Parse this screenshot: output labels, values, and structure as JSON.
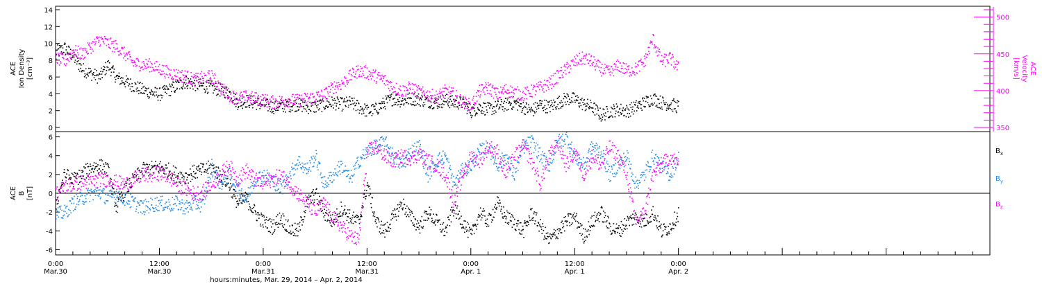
{
  "colors": {
    "black": "#000000",
    "magenta": "#ff00ff",
    "blue": "#1e88e5",
    "zero_line": "#000000"
  },
  "chart_data": [
    {
      "type": "scatter",
      "panel": "top",
      "ylabel_left": [
        "ACE",
        "Ion Density",
        "[cm⁻³]"
      ],
      "ylabel_right": [
        "ACE",
        "Velocity",
        "[km/s]"
      ],
      "ylim_left": [
        0,
        14
      ],
      "ylim_right": [
        350,
        510
      ],
      "yticks_left": [
        "0",
        "2",
        "4",
        "6",
        "8",
        "10",
        "12",
        "14"
      ],
      "yticks_right": [
        "350",
        "400",
        "450",
        "500"
      ],
      "series": [
        {
          "name": "Ion Density",
          "axis": "left",
          "color": "#000000",
          "x_hours": [
            0,
            1,
            2,
            3,
            4,
            5,
            6,
            7,
            8,
            9,
            10,
            11,
            12,
            13,
            14,
            15,
            16,
            17,
            18,
            19,
            20,
            21,
            22,
            23,
            24,
            25,
            26,
            27,
            28,
            29,
            30,
            31,
            32,
            33,
            34,
            35,
            36,
            37,
            38,
            39,
            40,
            41,
            42,
            43,
            44,
            45,
            46,
            47,
            48,
            49,
            50,
            51,
            52,
            53,
            54,
            55,
            56,
            57,
            58,
            59,
            60,
            61,
            62,
            63,
            64,
            65,
            66,
            67,
            68,
            69,
            70,
            71,
            72
          ],
          "values": [
            9.0,
            9.5,
            8.5,
            7.0,
            6.5,
            6.0,
            7.5,
            6.0,
            5.5,
            5.0,
            4.5,
            4.2,
            4.0,
            4.5,
            5.0,
            5.5,
            5.2,
            5.0,
            4.8,
            4.5,
            4.2,
            3.0,
            3.2,
            3.0,
            2.8,
            2.5,
            2.6,
            2.7,
            2.8,
            2.5,
            2.5,
            2.8,
            3.0,
            2.8,
            3.0,
            2.5,
            2.0,
            2.2,
            3.0,
            3.5,
            3.2,
            3.5,
            3.4,
            3.2,
            3.0,
            3.3,
            3.0,
            3.0,
            2.0,
            2.5,
            2.2,
            2.5,
            2.8,
            3.0,
            2.5,
            2.0,
            2.8,
            2.5,
            3.0,
            3.5,
            3.4,
            2.8,
            2.5,
            1.5,
            2.0,
            2.2,
            2.0,
            2.5,
            3.0,
            3.5,
            3.0,
            2.8,
            2.5
          ]
        },
        {
          "name": "Velocity",
          "axis": "right",
          "color": "#ff00ff",
          "x_hours": [
            0,
            1,
            2,
            3,
            4,
            5,
            6,
            7,
            8,
            9,
            10,
            11,
            12,
            13,
            14,
            15,
            16,
            17,
            18,
            19,
            20,
            21,
            22,
            23,
            24,
            25,
            26,
            27,
            28,
            29,
            30,
            31,
            32,
            33,
            34,
            35,
            36,
            37,
            38,
            39,
            40,
            41,
            42,
            43,
            44,
            45,
            46,
            47,
            48,
            49,
            50,
            51,
            52,
            53,
            54,
            55,
            56,
            57,
            58,
            59,
            60,
            61,
            62,
            63,
            64,
            65,
            66,
            67,
            68,
            69,
            70,
            71,
            72
          ],
          "values": [
            445,
            440,
            455,
            450,
            460,
            470,
            465,
            460,
            450,
            438,
            436,
            435,
            430,
            425,
            422,
            420,
            415,
            418,
            420,
            405,
            395,
            390,
            392,
            390,
            388,
            385,
            386,
            388,
            387,
            390,
            392,
            395,
            405,
            410,
            420,
            428,
            425,
            420,
            415,
            405,
            400,
            405,
            398,
            395,
            392,
            400,
            395,
            385,
            380,
            400,
            405,
            395,
            402,
            398,
            395,
            400,
            405,
            410,
            420,
            430,
            440,
            445,
            440,
            430,
            425,
            435,
            428,
            430,
            440,
            470,
            440,
            445,
            430
          ]
        }
      ]
    },
    {
      "type": "scatter",
      "panel": "bottom",
      "ylabel_left": [
        "ACE",
        "B",
        "[nT]"
      ],
      "ylim": [
        -7,
        7
      ],
      "yticks": [
        "-6",
        "-4",
        "-2",
        "0",
        "2",
        "4",
        "6"
      ],
      "legend_position": "right",
      "series": [
        {
          "name": "Bx",
          "legend_main": "B",
          "legend_sub": "x",
          "color": "#000000",
          "x_hours": [
            0,
            1,
            2,
            3,
            4,
            5,
            6,
            7,
            8,
            9,
            10,
            11,
            12,
            13,
            14,
            15,
            16,
            17,
            18,
            19,
            20,
            21,
            22,
            23,
            24,
            25,
            26,
            27,
            28,
            29,
            30,
            31,
            32,
            33,
            34,
            35,
            36,
            37,
            38,
            39,
            40,
            41,
            42,
            43,
            44,
            45,
            46,
            47,
            48,
            49,
            50,
            51,
            52,
            53,
            54,
            55,
            56,
            57,
            58,
            59,
            60,
            61,
            62,
            63,
            64,
            65,
            66,
            67,
            68,
            69,
            70,
            71,
            72
          ],
          "values": [
            -1.0,
            2.0,
            1.5,
            2.0,
            2.8,
            3.0,
            2.5,
            -1.5,
            0.5,
            1.5,
            2.5,
            2.7,
            2.8,
            2.5,
            2.0,
            1.8,
            2.3,
            2.5,
            2.8,
            2.0,
            1.0,
            -1.0,
            -0.5,
            -2.0,
            -3.0,
            -3.5,
            -2.5,
            -3.8,
            -4.0,
            -1.0,
            0.0,
            -2.0,
            -3.0,
            -1.5,
            -2.5,
            -3.0,
            1.0,
            -3.0,
            -4.0,
            -2.5,
            -1.0,
            -2.5,
            -3.5,
            -2.0,
            -3.0,
            -4.0,
            -1.5,
            -3.0,
            -4.5,
            -2.0,
            -3.0,
            -1.0,
            -2.5,
            -3.0,
            -4.0,
            -2.0,
            -3.5,
            -5.0,
            -4.0,
            -3.0,
            -2.5,
            -4.5,
            -3.0,
            -2.0,
            -3.5,
            -4.0,
            -3.0,
            -2.5,
            -3.0,
            -2.0,
            -4.0,
            -3.5,
            -2.0
          ]
        },
        {
          "name": "By",
          "legend_main": "B",
          "legend_sub": "y",
          "color": "#1e88e5",
          "x_hours": [
            0,
            1,
            2,
            3,
            4,
            5,
            6,
            7,
            8,
            9,
            10,
            11,
            12,
            13,
            14,
            15,
            16,
            17,
            18,
            19,
            20,
            21,
            22,
            23,
            24,
            25,
            26,
            27,
            28,
            29,
            30,
            31,
            32,
            33,
            34,
            35,
            36,
            37,
            38,
            39,
            40,
            41,
            42,
            43,
            44,
            45,
            46,
            47,
            48,
            49,
            50,
            51,
            52,
            53,
            54,
            55,
            56,
            57,
            58,
            59,
            60,
            61,
            62,
            63,
            64,
            65,
            66,
            67,
            68,
            69,
            70,
            71,
            72
          ],
          "values": [
            -2.2,
            -2.0,
            -1.0,
            -0.5,
            0.0,
            0.2,
            -0.5,
            0.0,
            -0.5,
            -1.0,
            -1.5,
            -1.2,
            -1.0,
            -1.2,
            -1.0,
            -1.5,
            -1.0,
            -1.2,
            3.0,
            1.0,
            2.0,
            0.5,
            -0.5,
            1.5,
            2.0,
            1.5,
            0.5,
            2.0,
            3.5,
            2.5,
            4.0,
            1.0,
            2.0,
            3.0,
            1.5,
            3.5,
            4.5,
            5.0,
            5.5,
            4.0,
            3.0,
            4.5,
            5.0,
            2.0,
            3.5,
            4.0,
            1.0,
            2.5,
            3.0,
            4.5,
            5.0,
            3.0,
            4.0,
            2.0,
            5.0,
            5.5,
            4.0,
            3.0,
            5.5,
            6.0,
            4.0,
            3.0,
            5.0,
            4.5,
            2.0,
            3.0,
            4.0,
            1.0,
            2.0,
            4.0,
            3.0,
            2.0,
            4.0
          ]
        },
        {
          "name": "Bz",
          "legend_main": "B",
          "legend_sub": "z",
          "color": "#ff00ff",
          "x_hours": [
            0,
            1,
            2,
            3,
            4,
            5,
            6,
            7,
            8,
            9,
            10,
            11,
            12,
            13,
            14,
            15,
            16,
            17,
            18,
            19,
            20,
            21,
            22,
            23,
            24,
            25,
            26,
            27,
            28,
            29,
            30,
            31,
            32,
            33,
            34,
            35,
            36,
            37,
            38,
            39,
            40,
            41,
            42,
            43,
            44,
            45,
            46,
            47,
            48,
            49,
            50,
            51,
            52,
            53,
            54,
            55,
            56,
            57,
            58,
            59,
            60,
            61,
            62,
            63,
            64,
            65,
            66,
            67,
            68,
            69,
            70,
            71,
            72
          ],
          "values": [
            0.0,
            0.8,
            1.0,
            1.2,
            1.3,
            1.5,
            1.5,
            1.2,
            1.0,
            1.5,
            2.0,
            2.0,
            2.2,
            1.8,
            1.0,
            0.5,
            0.0,
            0.2,
            1.0,
            2.0,
            3.0,
            1.5,
            2.5,
            1.5,
            1.0,
            1.5,
            2.0,
            1.0,
            0.0,
            -1.0,
            -2.0,
            -1.0,
            -2.5,
            -3.5,
            -4.5,
            -5.0,
            4.5,
            5.0,
            4.0,
            3.5,
            4.0,
            3.8,
            4.2,
            3.5,
            3.0,
            2.0,
            -1.0,
            2.0,
            4.0,
            3.5,
            5.0,
            4.5,
            2.0,
            4.0,
            5.0,
            3.5,
            1.0,
            4.0,
            5.5,
            3.0,
            4.5,
            2.0,
            4.0,
            3.0,
            5.0,
            4.0,
            2.0,
            -3.0,
            -2.0,
            2.0,
            3.0,
            4.0,
            3.0
          ]
        }
      ]
    }
  ],
  "x_axis": {
    "xlim_hours": [
      0,
      108
    ],
    "ticks": [
      {
        "time": "0:00",
        "date": "Mar.30",
        "hour": 0
      },
      {
        "time": "12:00",
        "date": "Mar.30",
        "hour": 12
      },
      {
        "time": "0:00",
        "date": "Mar.31",
        "hour": 24
      },
      {
        "time": "12:00",
        "date": "Mar.31",
        "hour": 36
      },
      {
        "time": "0:00",
        "date": "Apr. 1",
        "hour": 48
      },
      {
        "time": "12:00",
        "date": "Apr. 1",
        "hour": 60
      },
      {
        "time": "0:00",
        "date": "Apr. 2",
        "hour": 72
      }
    ],
    "xlabel": "hours:minutes, Mar. 29, 2014 – Apr.  2, 2014"
  }
}
